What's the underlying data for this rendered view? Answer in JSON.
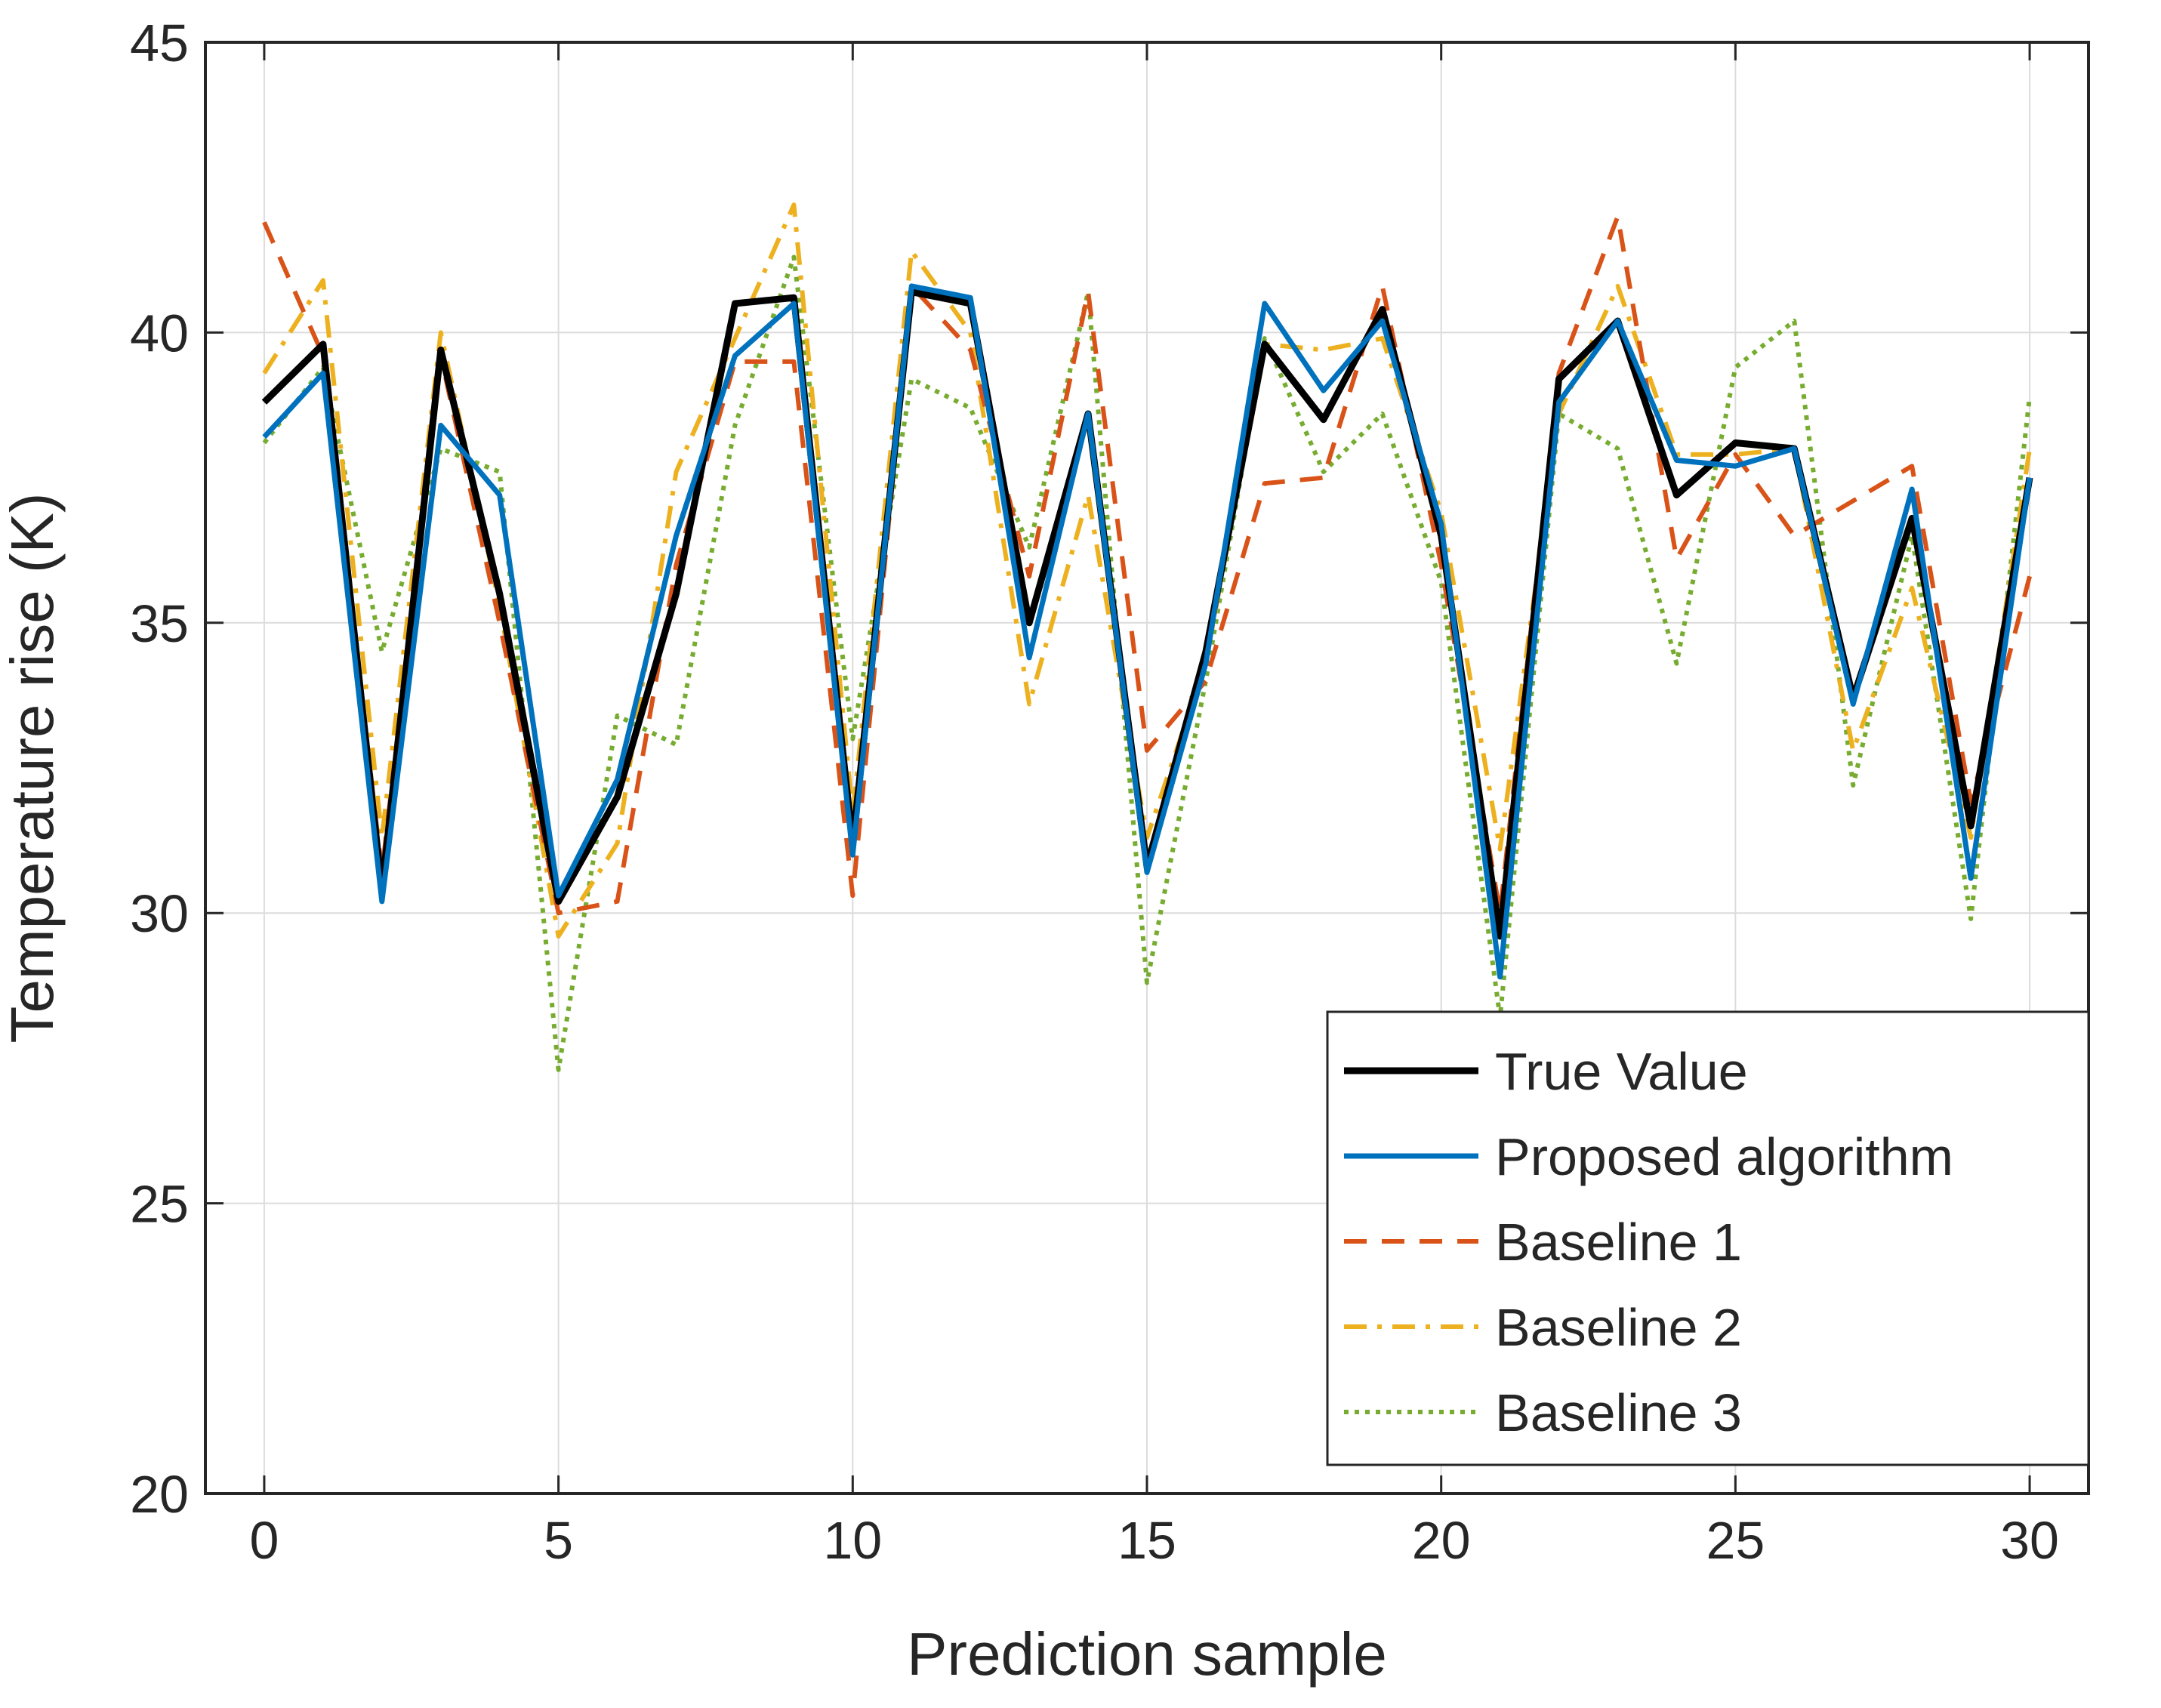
{
  "chart_data": {
    "type": "line",
    "title": "",
    "xlabel": "Prediction sample",
    "ylabel": "Temperature rise (K)",
    "xlim": [
      -1,
      31
    ],
    "ylim": [
      20,
      45
    ],
    "xticks": [
      0,
      5,
      10,
      15,
      20,
      25,
      30
    ],
    "yticks": [
      20,
      25,
      30,
      35,
      40,
      45
    ],
    "xtick_labels": [
      "0",
      "5",
      "10",
      "15",
      "20",
      "25",
      "30"
    ],
    "ytick_labels": [
      "20",
      "25",
      "30",
      "35",
      "40",
      "45"
    ],
    "grid": true,
    "legend_position": "bottom-right",
    "x": [
      0,
      1,
      2,
      3,
      4,
      5,
      6,
      7,
      8,
      9,
      10,
      11,
      12,
      13,
      14,
      15,
      16,
      17,
      18,
      19,
      20,
      21,
      22,
      23,
      24,
      25,
      26,
      27,
      28,
      29,
      30
    ],
    "series": [
      {
        "name": "True Value",
        "color": "#000000",
        "style": "solid",
        "values": [
          38.8,
          39.8,
          30.4,
          39.7,
          35.5,
          30.2,
          32.0,
          35.5,
          40.5,
          40.6,
          31.2,
          40.7,
          40.5,
          35.0,
          38.6,
          30.8,
          34.5,
          39.8,
          38.5,
          40.4,
          36.5,
          29.6,
          39.2,
          40.2,
          37.2,
          38.1,
          38.0,
          33.7,
          36.8,
          31.5,
          37.5
        ]
      },
      {
        "name": "Proposed algorithm",
        "color": "#0072BD",
        "style": "solid",
        "values": [
          38.2,
          39.3,
          30.2,
          38.4,
          37.2,
          30.3,
          32.3,
          36.5,
          39.6,
          40.5,
          31.0,
          40.8,
          40.6,
          34.4,
          38.6,
          30.7,
          34.3,
          40.5,
          39.0,
          40.2,
          36.7,
          28.9,
          38.8,
          40.2,
          37.8,
          37.7,
          38.0,
          33.6,
          37.3,
          30.6,
          37.5
        ]
      },
      {
        "name": "Baseline 1",
        "color": "#D95319",
        "style": "dashed",
        "values": [
          41.9,
          39.6,
          30.7,
          39.6,
          35.0,
          30.0,
          30.2,
          36.0,
          39.5,
          39.5,
          30.3,
          40.8,
          39.7,
          35.8,
          40.7,
          32.8,
          34.0,
          37.4,
          37.5,
          40.8,
          36.0,
          30.0,
          39.3,
          42.0,
          36.1,
          37.9,
          36.5,
          37.1,
          37.7,
          31.9,
          35.8
        ]
      },
      {
        "name": "Baseline 2",
        "color": "#EDB120",
        "style": "dashdot",
        "values": [
          39.3,
          40.9,
          31.3,
          40.0,
          35.3,
          29.6,
          31.2,
          37.6,
          39.9,
          42.2,
          31.7,
          41.4,
          40.0,
          33.6,
          37.2,
          31.3,
          34.3,
          39.8,
          39.7,
          39.9,
          36.9,
          31.1,
          38.6,
          40.8,
          37.9,
          37.9,
          38.0,
          32.8,
          35.6,
          31.3,
          38.0
        ]
      },
      {
        "name": "Baseline 3",
        "color": "#77AC30",
        "style": "dotted",
        "values": [
          38.1,
          39.4,
          34.5,
          38.0,
          37.6,
          27.3,
          33.4,
          32.9,
          38.4,
          41.3,
          33.0,
          39.2,
          38.7,
          36.3,
          40.7,
          28.8,
          34.0,
          39.9,
          37.6,
          38.6,
          35.7,
          28.2,
          38.6,
          38.0,
          34.3,
          39.4,
          40.2,
          32.2,
          36.5,
          29.9,
          38.9
        ]
      }
    ]
  }
}
